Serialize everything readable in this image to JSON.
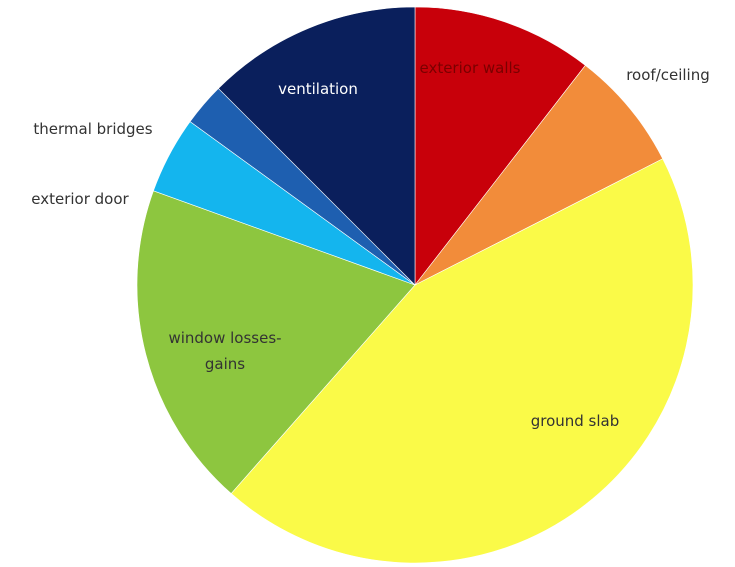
{
  "chart_data": {
    "type": "pie",
    "slices": [
      {
        "label": "exterior walls",
        "value": 10.5,
        "color": "#c8000a",
        "label_color": "#7a0000",
        "label_outside": false,
        "label_lines": [
          "exterior walls"
        ]
      },
      {
        "label": "roof/ceiling",
        "value": 7.0,
        "color": "#f28c3a",
        "label_color": "#333333",
        "label_outside": true,
        "label_lines": [
          "roof/ceiling"
        ]
      },
      {
        "label": "ground slab",
        "value": 44.0,
        "color": "#fafa48",
        "label_color": "#333333",
        "label_outside": false,
        "label_lines": [
          "ground slab"
        ]
      },
      {
        "label": "window losses-gains",
        "value": 19.0,
        "color": "#8dc63f",
        "label_color": "#333333",
        "label_outside": false,
        "label_lines": [
          "window losses-",
          "gains"
        ]
      },
      {
        "label": "exterior door",
        "value": 4.5,
        "color": "#14b5ee",
        "label_color": "#333333",
        "label_outside": true,
        "label_lines": [
          "exterior door"
        ]
      },
      {
        "label": "thermal bridges",
        "value": 2.5,
        "color": "#1e5fb0",
        "label_color": "#333333",
        "label_outside": true,
        "label_lines": [
          "thermal bridges"
        ]
      },
      {
        "label": "ventilation",
        "value": 12.5,
        "color": "#0a1f5c",
        "label_color": "#ffffff",
        "label_outside": false,
        "label_lines": [
          "ventilation"
        ]
      }
    ],
    "start_angle_deg": 0,
    "direction": "clockwise",
    "legend": "none"
  }
}
